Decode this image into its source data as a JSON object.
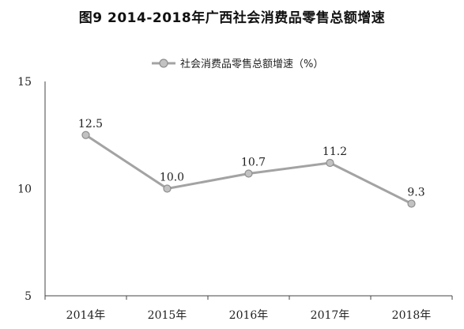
{
  "chart_data": {
    "type": "line",
    "title": "图9  2014-2018年广西社会消费品零售总额增速",
    "categories": [
      "2014年",
      "2015年",
      "2016年",
      "2017年",
      "2018年"
    ],
    "series": [
      {
        "name": "社会消费品零售总额增速（%）",
        "values": [
          12.5,
          10.0,
          10.7,
          11.2,
          9.3
        ],
        "labels": [
          "12.5",
          "10.0",
          "10.7",
          "11.2",
          "9.3"
        ]
      }
    ],
    "ylim": [
      5,
      15
    ],
    "yticks": [
      5,
      10,
      15
    ],
    "ytick_labels": [
      "5",
      "10",
      "15"
    ],
    "xlabel": "",
    "ylabel": "",
    "grid": false,
    "legend_position": "top-center",
    "colors": {
      "line": "#a3a3a3",
      "marker_fill": "#c2c2c2",
      "marker_stroke": "#8e8e8e",
      "axis": "#444444"
    }
  }
}
